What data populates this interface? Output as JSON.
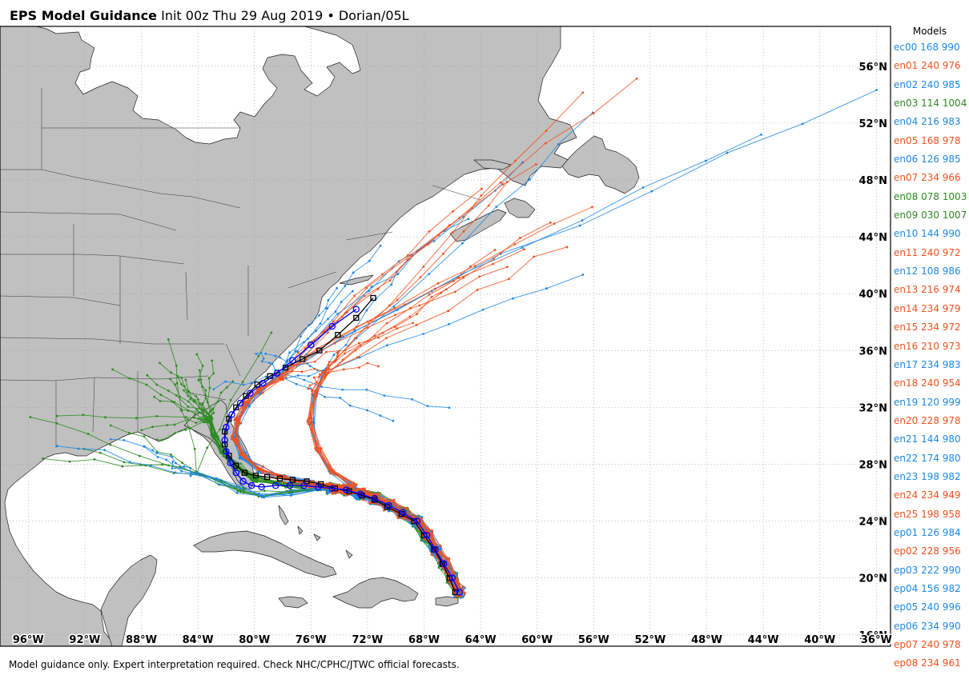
{
  "header": {
    "title_bold": "EPS Model Guidance",
    "title_rest": " Init 00z Thu 29 Aug 2019 • Dorian/05L"
  },
  "footer": "Model guidance only. Expert interpretation required. Check NHC/CPHC/JTWC official forecasts.",
  "map": {
    "lon_range": [
      -98,
      -35
    ],
    "lat_range": [
      15.2,
      58.8
    ],
    "lon_labels": [
      "96°W",
      "92°W",
      "88°W",
      "84°W",
      "80°W",
      "76°W",
      "72°W",
      "68°W",
      "64°W",
      "60°W",
      "56°W",
      "52°W",
      "48°W",
      "44°W",
      "40°W",
      "36°W"
    ],
    "lat_labels": [
      "16°N",
      "20°N",
      "24°N",
      "28°N",
      "32°N",
      "36°N",
      "40°N",
      "44°N",
      "48°N",
      "52°N",
      "56°N"
    ],
    "land_color": "#c0c0c0",
    "colors": {
      "blue": "#1e88e5",
      "orange": "#f4511e",
      "green": "#2e8b22",
      "mean": "#0000ff",
      "control": "#000000"
    }
  },
  "legend": {
    "title": "Models",
    "items": [
      {
        "label": "ec00 168 990",
        "color": "#1e88e5"
      },
      {
        "label": "en01 240 976",
        "color": "#f4511e"
      },
      {
        "label": "en02 240 985",
        "color": "#1e88e5"
      },
      {
        "label": "en03 114 1004",
        "color": "#2e8b22"
      },
      {
        "label": "en04 216 983",
        "color": "#1e88e5"
      },
      {
        "label": "en05 168 978",
        "color": "#f4511e"
      },
      {
        "label": "en06 126 985",
        "color": "#1e88e5"
      },
      {
        "label": "en07 234 966",
        "color": "#f4511e"
      },
      {
        "label": "en08 078 1003",
        "color": "#2e8b22"
      },
      {
        "label": "en09 030 1007",
        "color": "#2e8b22"
      },
      {
        "label": "en10 144 990",
        "color": "#1e88e5"
      },
      {
        "label": "en11 240 972",
        "color": "#f4511e"
      },
      {
        "label": "en12 108 986",
        "color": "#1e88e5"
      },
      {
        "label": "en13 216 974",
        "color": "#f4511e"
      },
      {
        "label": "en14 234 979",
        "color": "#f4511e"
      },
      {
        "label": "en15 234 972",
        "color": "#f4511e"
      },
      {
        "label": "en16 210 973",
        "color": "#f4511e"
      },
      {
        "label": "en17 234 983",
        "color": "#1e88e5"
      },
      {
        "label": "en18 240 954",
        "color": "#f4511e"
      },
      {
        "label": "en19 120 999",
        "color": "#1e88e5"
      },
      {
        "label": "en20 228 978",
        "color": "#f4511e"
      },
      {
        "label": "en21 144 980",
        "color": "#1e88e5"
      },
      {
        "label": "en22 174 980",
        "color": "#1e88e5"
      },
      {
        "label": "en23 198 982",
        "color": "#1e88e5"
      },
      {
        "label": "en24 234 949",
        "color": "#f4511e"
      },
      {
        "label": "en25 198 958",
        "color": "#f4511e"
      },
      {
        "label": "ep01 126 984",
        "color": "#1e88e5"
      },
      {
        "label": "ep02 228 956",
        "color": "#f4511e"
      },
      {
        "label": "ep03 222 990",
        "color": "#1e88e5"
      },
      {
        "label": "ep04 156 982",
        "color": "#1e88e5"
      },
      {
        "label": "ep05 240 996",
        "color": "#1e88e5"
      },
      {
        "label": "ep06 234 990",
        "color": "#1e88e5"
      },
      {
        "label": "ep07 240 978",
        "color": "#f4511e"
      },
      {
        "label": "ep08 234 961",
        "color": "#f4511e"
      }
    ]
  },
  "tracks": {
    "mean": [
      [
        -65.5,
        19.0
      ],
      [
        -66.0,
        20.0
      ],
      [
        -66.6,
        21.0
      ],
      [
        -67.2,
        22.0
      ],
      [
        -67.8,
        23.0
      ],
      [
        -68.5,
        24.0
      ],
      [
        -69.5,
        24.6
      ],
      [
        -70.5,
        25.1
      ],
      [
        -71.5,
        25.6
      ],
      [
        -72.5,
        25.9
      ],
      [
        -73.5,
        26.2
      ],
      [
        -74.5,
        26.3
      ],
      [
        -75.5,
        26.4
      ],
      [
        -76.5,
        26.5
      ],
      [
        -77.5,
        26.5
      ],
      [
        -78.5,
        26.5
      ],
      [
        -79.5,
        26.4
      ],
      [
        -80.2,
        26.5
      ],
      [
        -80.8,
        26.8
      ],
      [
        -81.3,
        27.4
      ],
      [
        -81.7,
        28.1
      ],
      [
        -82.0,
        28.9
      ],
      [
        -82.1,
        29.7
      ],
      [
        -82.0,
        30.6
      ],
      [
        -81.6,
        31.5
      ],
      [
        -81.0,
        32.3
      ],
      [
        -80.3,
        33.0
      ],
      [
        -79.4,
        33.7
      ],
      [
        -78.4,
        34.4
      ],
      [
        -77.3,
        35.3
      ],
      [
        -76.0,
        36.4
      ],
      [
        -74.5,
        37.7
      ],
      [
        -72.8,
        38.9
      ]
    ],
    "control": [
      [
        -65.8,
        19.0
      ],
      [
        -66.2,
        20.0
      ],
      [
        -66.7,
        21.0
      ],
      [
        -67.3,
        22.0
      ],
      [
        -68.0,
        23.0
      ],
      [
        -68.7,
        24.0
      ],
      [
        -69.6,
        24.5
      ],
      [
        -70.6,
        25.0
      ],
      [
        -71.5,
        25.5
      ],
      [
        -72.4,
        25.8
      ],
      [
        -73.3,
        26.1
      ],
      [
        -74.3,
        26.3
      ],
      [
        -75.3,
        26.6
      ],
      [
        -76.3,
        26.8
      ],
      [
        -77.3,
        26.9
      ],
      [
        -78.2,
        27.0
      ],
      [
        -79.1,
        27.1
      ],
      [
        -79.9,
        27.2
      ],
      [
        -80.7,
        27.4
      ],
      [
        -81.3,
        27.9
      ],
      [
        -81.8,
        28.6
      ],
      [
        -82.1,
        29.4
      ],
      [
        -82.1,
        30.3
      ],
      [
        -81.8,
        31.2
      ],
      [
        -81.3,
        32.0
      ],
      [
        -80.6,
        32.8
      ],
      [
        -79.8,
        33.6
      ],
      [
        -78.9,
        34.2
      ],
      [
        -77.8,
        34.8
      ],
      [
        -76.6,
        35.4
      ],
      [
        -75.4,
        36.0
      ],
      [
        -74.1,
        37.1
      ],
      [
        -72.8,
        38.3
      ],
      [
        -71.6,
        39.7
      ]
    ]
  }
}
